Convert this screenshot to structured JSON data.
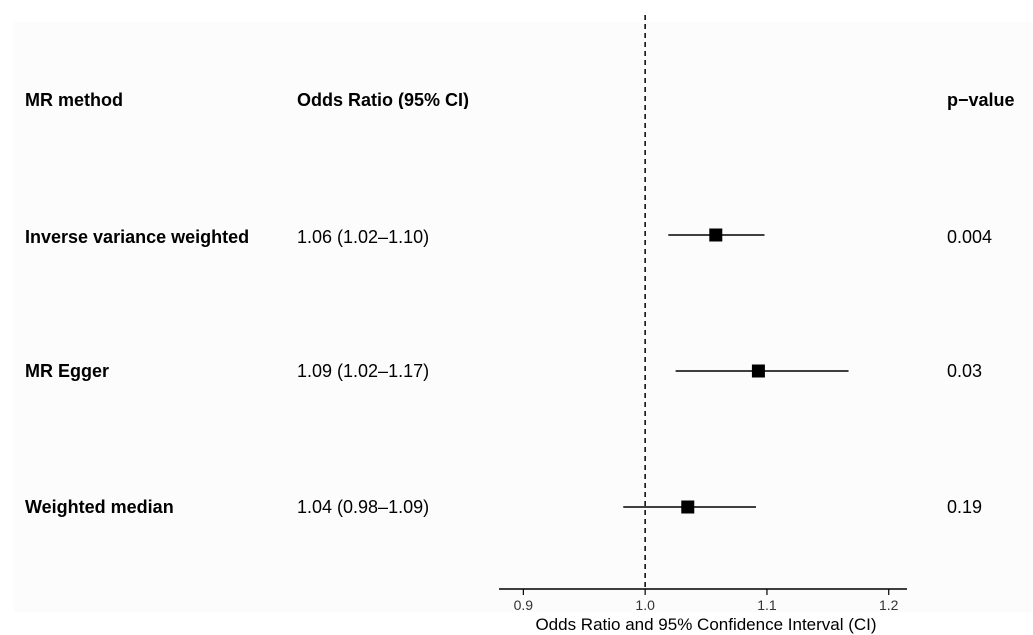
{
  "table": {
    "headers": {
      "method": "MR method",
      "or_ci": "Odds Ratio (95% CI)",
      "p_value": "p−value"
    },
    "rows": [
      {
        "method": "Inverse variance weighted",
        "or_ci": "1.06 (1.02–1.10)",
        "p_value": "0.004"
      },
      {
        "method": "MR Egger",
        "or_ci": "1.09 (1.02–1.17)",
        "p_value": "0.03"
      },
      {
        "method": "Weighted median",
        "or_ci": "1.04 (0.98–1.09)",
        "p_value": "0.19"
      }
    ]
  },
  "chart_data": {
    "type": "scatter",
    "subtype": "forest-plot",
    "xlabel": "Odds Ratio and 95% Confidence Interval (CI)",
    "xlim": [
      0.88,
      1.215
    ],
    "x_ticks": [
      0.9,
      1.0,
      1.1,
      1.2
    ],
    "x_tick_labels": [
      "0.9",
      "1.0",
      "1.1",
      "1.2"
    ],
    "reference_line": 1.0,
    "categories": [
      "Inverse variance weighted",
      "MR Egger",
      "Weighted median"
    ],
    "series": [
      {
        "points": [
          {
            "estimate": 1.058,
            "lower": 1.019,
            "upper": 1.098
          },
          {
            "estimate": 1.093,
            "lower": 1.025,
            "upper": 1.167
          },
          {
            "estimate": 1.035,
            "lower": 0.982,
            "upper": 1.091
          }
        ]
      }
    ],
    "grid": false,
    "colors": {
      "marker": "#000000",
      "ci_line": "#000000",
      "reference": "#000000"
    }
  }
}
